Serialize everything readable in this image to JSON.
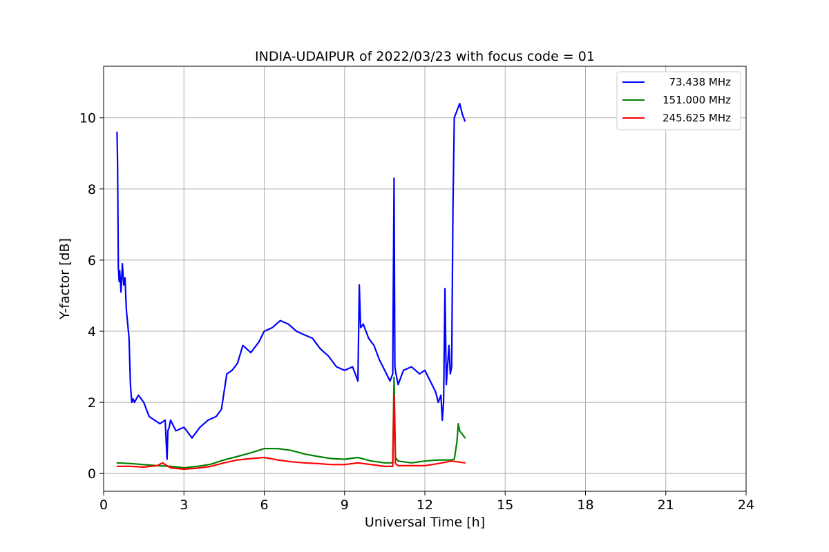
{
  "chart_data": {
    "type": "line",
    "title": "INDIA-UDAIPUR of 2022/03/23 with focus code = 01",
    "xlabel": "Universal Time [h]",
    "ylabel": "Y-factor [dB]",
    "xlim": [
      0,
      24
    ],
    "ylim": [
      -0.5,
      11.45
    ],
    "xticks": [
      0,
      3,
      6,
      9,
      12,
      15,
      18,
      21,
      24
    ],
    "yticks": [
      0,
      2,
      4,
      6,
      8,
      10
    ],
    "grid": true,
    "legend_position": "upper right",
    "series": [
      {
        "name": "73.438 MHz",
        "color": "#0000ff",
        "x": [
          0.5,
          0.52,
          0.55,
          0.58,
          0.6,
          0.65,
          0.7,
          0.75,
          0.8,
          0.85,
          0.9,
          0.95,
          1.0,
          1.05,
          1.1,
          1.15,
          1.3,
          1.5,
          1.7,
          1.9,
          2.1,
          2.3,
          2.37,
          2.4,
          2.45,
          2.5,
          2.7,
          3.0,
          3.3,
          3.6,
          3.9,
          4.2,
          4.4,
          4.6,
          4.8,
          5.0,
          5.2,
          5.5,
          5.8,
          6.0,
          6.3,
          6.6,
          6.9,
          7.2,
          7.5,
          7.8,
          8.1,
          8.4,
          8.7,
          9.0,
          9.3,
          9.5,
          9.55,
          9.6,
          9.7,
          9.9,
          10.1,
          10.3,
          10.5,
          10.7,
          10.8,
          10.85,
          10.88,
          10.92,
          11.0,
          11.2,
          11.5,
          11.8,
          12.0,
          12.2,
          12.4,
          12.5,
          12.6,
          12.65,
          12.7,
          12.75,
          12.8,
          12.9,
          12.95,
          13.0,
          13.05,
          13.1,
          13.2,
          13.3,
          13.4,
          13.5
        ],
        "y": [
          9.6,
          8.7,
          5.8,
          5.4,
          5.7,
          5.1,
          5.9,
          5.3,
          5.5,
          4.6,
          4.2,
          3.8,
          2.5,
          2.0,
          2.1,
          2.0,
          2.2,
          2.0,
          1.6,
          1.5,
          1.4,
          1.5,
          0.4,
          1.2,
          1.3,
          1.5,
          1.2,
          1.3,
          1.0,
          1.3,
          1.5,
          1.6,
          1.8,
          2.8,
          2.9,
          3.1,
          3.6,
          3.4,
          3.7,
          4.0,
          4.1,
          4.3,
          4.2,
          4.0,
          3.9,
          3.8,
          3.5,
          3.3,
          3.0,
          2.9,
          3.0,
          2.6,
          5.3,
          4.1,
          4.2,
          3.8,
          3.6,
          3.2,
          2.9,
          2.6,
          2.8,
          8.3,
          3.0,
          2.8,
          2.5,
          2.9,
          3.0,
          2.8,
          2.9,
          2.6,
          2.3,
          2.0,
          2.2,
          1.5,
          2.0,
          5.2,
          2.5,
          3.6,
          2.8,
          3.0,
          7.5,
          10.0,
          10.2,
          10.4,
          10.1,
          9.9
        ]
      },
      {
        "name": "151.000 MHz",
        "color": "#008000",
        "x": [
          0.5,
          1.0,
          1.5,
          2.0,
          2.5,
          3.0,
          3.5,
          4.0,
          4.5,
          5.0,
          5.5,
          6.0,
          6.5,
          7.0,
          7.5,
          8.0,
          8.5,
          9.0,
          9.5,
          10.0,
          10.5,
          10.8,
          10.85,
          10.9,
          11.0,
          11.5,
          12.0,
          12.5,
          13.0,
          13.1,
          13.2,
          13.25,
          13.3,
          13.4,
          13.5
        ],
        "y": [
          0.3,
          0.28,
          0.25,
          0.22,
          0.2,
          0.16,
          0.2,
          0.26,
          0.38,
          0.48,
          0.58,
          0.7,
          0.7,
          0.65,
          0.55,
          0.48,
          0.42,
          0.4,
          0.45,
          0.35,
          0.3,
          0.3,
          2.7,
          0.45,
          0.35,
          0.3,
          0.35,
          0.38,
          0.38,
          0.4,
          0.9,
          1.4,
          1.2,
          1.1,
          1.0
        ]
      },
      {
        "name": "245.625 MHz",
        "color": "#ff0000",
        "x": [
          0.5,
          1.0,
          1.5,
          2.0,
          2.2,
          2.5,
          3.0,
          3.5,
          4.0,
          4.5,
          5.0,
          5.5,
          6.0,
          6.5,
          7.0,
          7.5,
          8.0,
          8.5,
          9.0,
          9.5,
          10.0,
          10.5,
          10.8,
          10.85,
          10.9,
          11.0,
          11.5,
          12.0,
          12.5,
          13.0,
          13.5
        ],
        "y": [
          0.2,
          0.2,
          0.18,
          0.22,
          0.3,
          0.16,
          0.12,
          0.15,
          0.2,
          0.3,
          0.38,
          0.42,
          0.45,
          0.38,
          0.33,
          0.3,
          0.28,
          0.25,
          0.25,
          0.3,
          0.25,
          0.2,
          0.2,
          2.2,
          0.28,
          0.22,
          0.22,
          0.22,
          0.28,
          0.35,
          0.3
        ]
      }
    ]
  }
}
